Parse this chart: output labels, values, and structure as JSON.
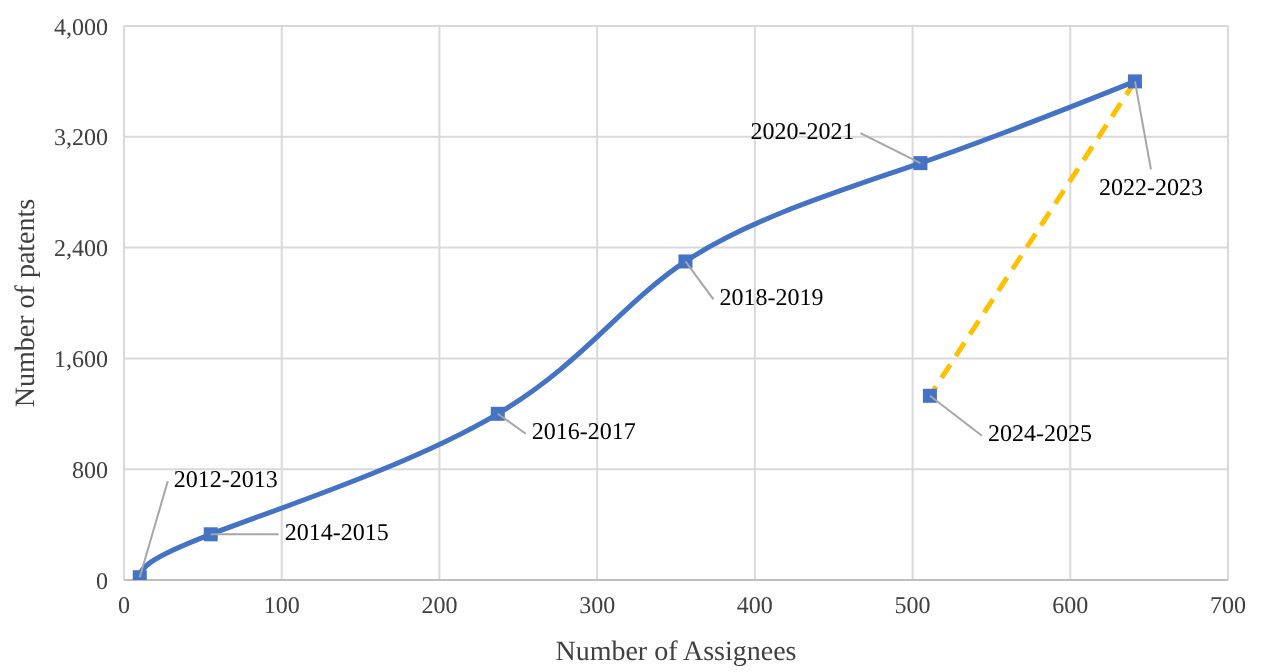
{
  "chart_data": {
    "type": "line",
    "xlabel": "Number of Assignees",
    "ylabel": "Number of patents",
    "xlim": [
      0,
      700
    ],
    "xticks": [
      0,
      100,
      200,
      300,
      400,
      500,
      600,
      700
    ],
    "ylim": [
      0,
      4000
    ],
    "yticks": [
      {
        "value": 0,
        "label": "0"
      },
      {
        "value": 800,
        "label": "800"
      },
      {
        "value": 1600,
        "label": "1,600"
      },
      {
        "value": 2400,
        "label": "2,400"
      },
      {
        "value": 3200,
        "label": "3,200"
      },
      {
        "value": 4000,
        "label": "4,000"
      }
    ],
    "grid": true,
    "legend": false,
    "series": [
      {
        "color": "#4472c4",
        "marker": "square",
        "line_style": "solid",
        "x": [
          10,
          55,
          237,
          356,
          505,
          641
        ],
        "values": [
          20,
          330,
          1200,
          2300,
          3010,
          3600
        ]
      },
      {
        "color": "#ffc000",
        "marker": "none",
        "line_style": "dashed",
        "x": [
          641,
          511
        ],
        "values": [
          3600,
          1330
        ]
      },
      {
        "type": "scatter",
        "color": "#4472c4",
        "marker": "square",
        "x": [
          511
        ],
        "values": [
          1330
        ]
      }
    ],
    "annotations": [
      {
        "text": "2012-2013",
        "x": 10,
        "y": 20
      },
      {
        "text": "2014-2015",
        "x": 55,
        "y": 330
      },
      {
        "text": "2016-2017",
        "x": 237,
        "y": 1200
      },
      {
        "text": "2018-2019",
        "x": 356,
        "y": 2300
      },
      {
        "text": "2020-2021",
        "x": 505,
        "y": 3010
      },
      {
        "text": "2022-2023",
        "x": 641,
        "y": 3600
      },
      {
        "text": "2024-2025",
        "x": 511,
        "y": 1330
      }
    ]
  }
}
